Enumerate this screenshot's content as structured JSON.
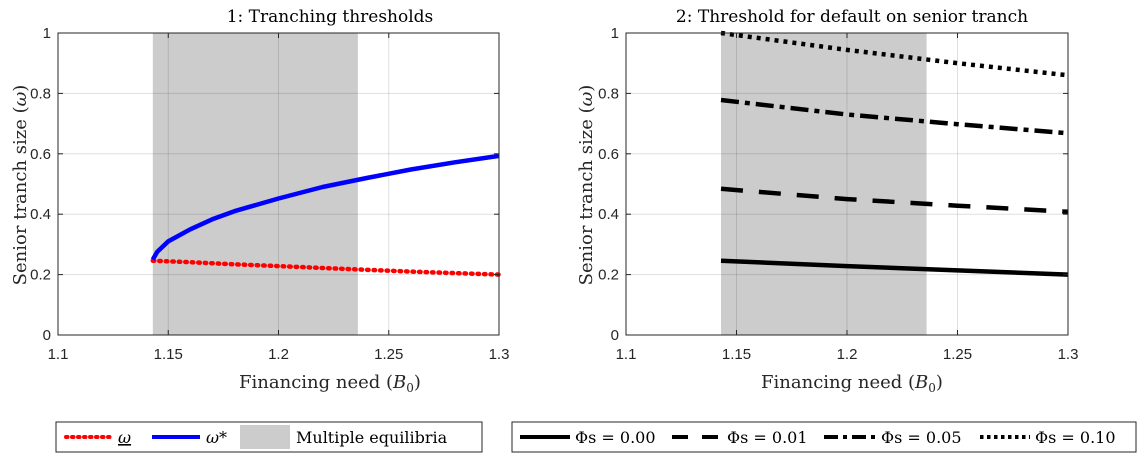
{
  "chart_data": [
    {
      "type": "line",
      "title": "1: Tranching thresholds",
      "xlabel": "Financing need (B₀)",
      "ylabel": "Senior tranch size (ω)",
      "xlim": [
        1.1,
        1.3
      ],
      "ylim": [
        0,
        1
      ],
      "x_ticks": [
        "1.1",
        "1.15",
        "1.2",
        "1.25",
        "1.3"
      ],
      "y_ticks": [
        "0",
        "0.2",
        "0.4",
        "0.6",
        "0.8",
        "1"
      ],
      "grid": true,
      "shaded_region": {
        "x": [
          1.143,
          1.236
        ],
        "label": "Multiple equilibria",
        "color": "#cccccc"
      },
      "series": [
        {
          "name": "ω",
          "color": "#ff0000",
          "style": "dotted",
          "x": [
            1.143,
            1.16,
            1.18,
            1.2,
            1.22,
            1.24,
            1.26,
            1.28,
            1.3
          ],
          "y": [
            0.246,
            0.241,
            0.234,
            0.228,
            0.222,
            0.216,
            0.21,
            0.205,
            0.2
          ]
        },
        {
          "name": "ω*",
          "color": "#0000ff",
          "style": "solid",
          "x": [
            1.143,
            1.145,
            1.15,
            1.16,
            1.17,
            1.18,
            1.2,
            1.22,
            1.24,
            1.26,
            1.28,
            1.3
          ],
          "y": [
            0.25,
            0.275,
            0.31,
            0.35,
            0.383,
            0.41,
            0.452,
            0.49,
            0.52,
            0.548,
            0.572,
            0.593
          ]
        }
      ],
      "legend": {
        "placement": "below",
        "items": [
          {
            "label": "ω",
            "color": "#ff0000",
            "style": "dotted"
          },
          {
            "label": "ω*",
            "color": "#0000ff",
            "style": "solid"
          },
          {
            "label": "Multiple equilibria",
            "color": "#cccccc",
            "style": "patch"
          }
        ]
      }
    },
    {
      "type": "line",
      "title": "2: Threshold for default on senior tranch",
      "xlabel": "Financing need (B₀)",
      "ylabel": "Senior tranch size (ω)",
      "xlim": [
        1.1,
        1.3
      ],
      "ylim": [
        0,
        1
      ],
      "x_ticks": [
        "1.1",
        "1.15",
        "1.2",
        "1.25",
        "1.3"
      ],
      "y_ticks": [
        "0",
        "0.2",
        "0.4",
        "0.6",
        "0.8",
        "1"
      ],
      "grid": true,
      "shaded_region": {
        "x": [
          1.143,
          1.236
        ],
        "color": "#cccccc"
      },
      "series": [
        {
          "name": "Φs = 0.00",
          "color": "#000000",
          "style": "solid",
          "x": [
            1.143,
            1.2,
            1.25,
            1.3
          ],
          "y": [
            0.246,
            0.228,
            0.214,
            0.2
          ]
        },
        {
          "name": "Φs = 0.01",
          "color": "#000000",
          "style": "dashed",
          "x": [
            1.143,
            1.2,
            1.25,
            1.3
          ],
          "y": [
            0.484,
            0.45,
            0.428,
            0.408
          ]
        },
        {
          "name": "Φs = 0.05",
          "color": "#000000",
          "style": "dashdot",
          "x": [
            1.143,
            1.2,
            1.25,
            1.3
          ],
          "y": [
            0.778,
            0.73,
            0.698,
            0.668
          ]
        },
        {
          "name": "Φs = 0.10",
          "color": "#000000",
          "style": "dotted",
          "x": [
            1.143,
            1.2,
            1.25,
            1.3
          ],
          "y": [
            1.0,
            0.944,
            0.9,
            0.86
          ]
        }
      ],
      "legend": {
        "placement": "below",
        "items": [
          {
            "label": "Φs = 0.00",
            "style": "solid"
          },
          {
            "label": "Φs = 0.01",
            "style": "dashed"
          },
          {
            "label": "Φs = 0.05",
            "style": "dashdot"
          },
          {
            "label": "Φs = 0.10",
            "style": "dotted"
          }
        ]
      }
    }
  ]
}
